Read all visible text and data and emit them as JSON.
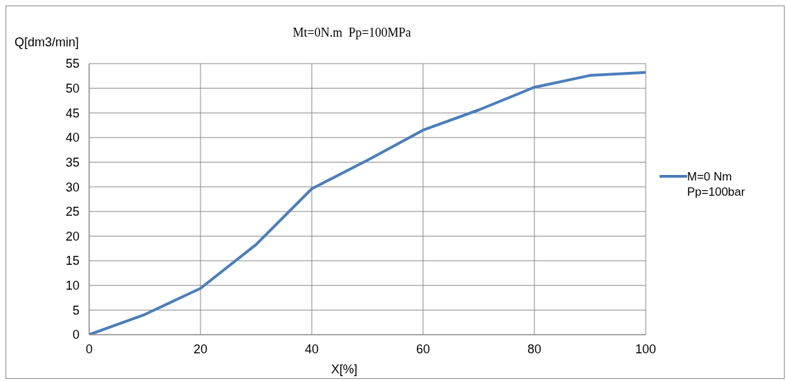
{
  "chart_data": {
    "type": "line",
    "title": "Mt=0N.m  Pp=100MPa",
    "xlabel": "X[%]",
    "ylabel": "Q[dm3/min]",
    "x": [
      0,
      10,
      20,
      30,
      40,
      50,
      60,
      70,
      80,
      90,
      100
    ],
    "series": [
      {
        "name": "M=0 Nm Pp=100bar",
        "color": "#4a7ebb",
        "values": [
          0,
          4.1,
          9.4,
          18.3,
          29.6,
          35.4,
          41.5,
          45.6,
          50.2,
          52.6,
          53.2
        ]
      }
    ],
    "xlim": [
      0,
      100
    ],
    "xticks": [
      0,
      20,
      40,
      60,
      80,
      100
    ],
    "ylim": [
      0,
      55
    ],
    "yticks": [
      0,
      5,
      10,
      15,
      20,
      25,
      30,
      35,
      40,
      45,
      50,
      55
    ],
    "grid": true,
    "legend": "right",
    "marker": "none",
    "line_style": "solid"
  }
}
